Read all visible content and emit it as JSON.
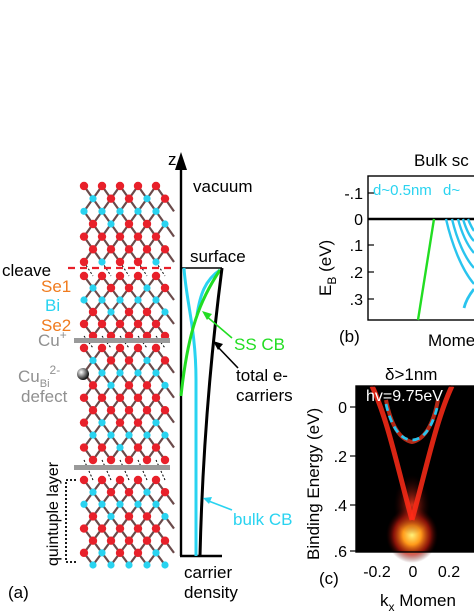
{
  "panel_a": {
    "tag": "(a)",
    "labels": {
      "cleave": "cleave",
      "se1": "Se1",
      "bi": "Bi",
      "se2": "Se2",
      "cu_plus": "Cu",
      "cu_plus_sup": "+",
      "cu_bi_main": "Cu",
      "cu_bi_sub": "Bi",
      "cu_bi_sup": "2-",
      "defect": "defect",
      "quintuple": "quintuple layer"
    },
    "axis": {
      "z": "z",
      "vacuum": "vacuum",
      "surface": "surface",
      "carrier": "carrier",
      "density": "density"
    },
    "curves": {
      "ss_cb": "SS CB",
      "total_1": "total e-",
      "total_2": "carriers",
      "bulk_cb": "bulk CB"
    },
    "colors": {
      "se": "#e8202a",
      "bi": "#29d3f0",
      "bond": "#6b4a4a",
      "cleave_line": "#e8202a",
      "ss_cb": "#22dd22",
      "bulk_cb": "#29d3f0",
      "orange_label": "#f07b1e",
      "grey": "#909090"
    }
  },
  "panel_b": {
    "tag": "(b)",
    "title": "Bulk sc",
    "ylabel_main": "E",
    "ylabel_sub": "B",
    "ylabel_unit": " (eV)",
    "yticks": [
      "-.1",
      "0",
      ".1",
      ".2",
      ".3"
    ],
    "annot_1": "d~0.5nm",
    "annot_2": "d~",
    "xlabel": "Momen",
    "colors": {
      "bands": "#29c4ee",
      "ss": "#22dd22",
      "annot": "#29d3f0"
    }
  },
  "panel_c": {
    "tag": "(c)",
    "delta": "δ>1nm",
    "photon": "hv=9.75eV",
    "ylabel": "Binding Energy (eV)",
    "yticks": [
      "0",
      ".2",
      ".4",
      ".6"
    ],
    "xticks": [
      "-0.2",
      "0",
      "0.2"
    ],
    "xlabel_main": "k",
    "xlabel_sub": "x",
    "xlabel_rest": " Momen",
    "colors": {
      "dash": "#29c4ee"
    }
  }
}
